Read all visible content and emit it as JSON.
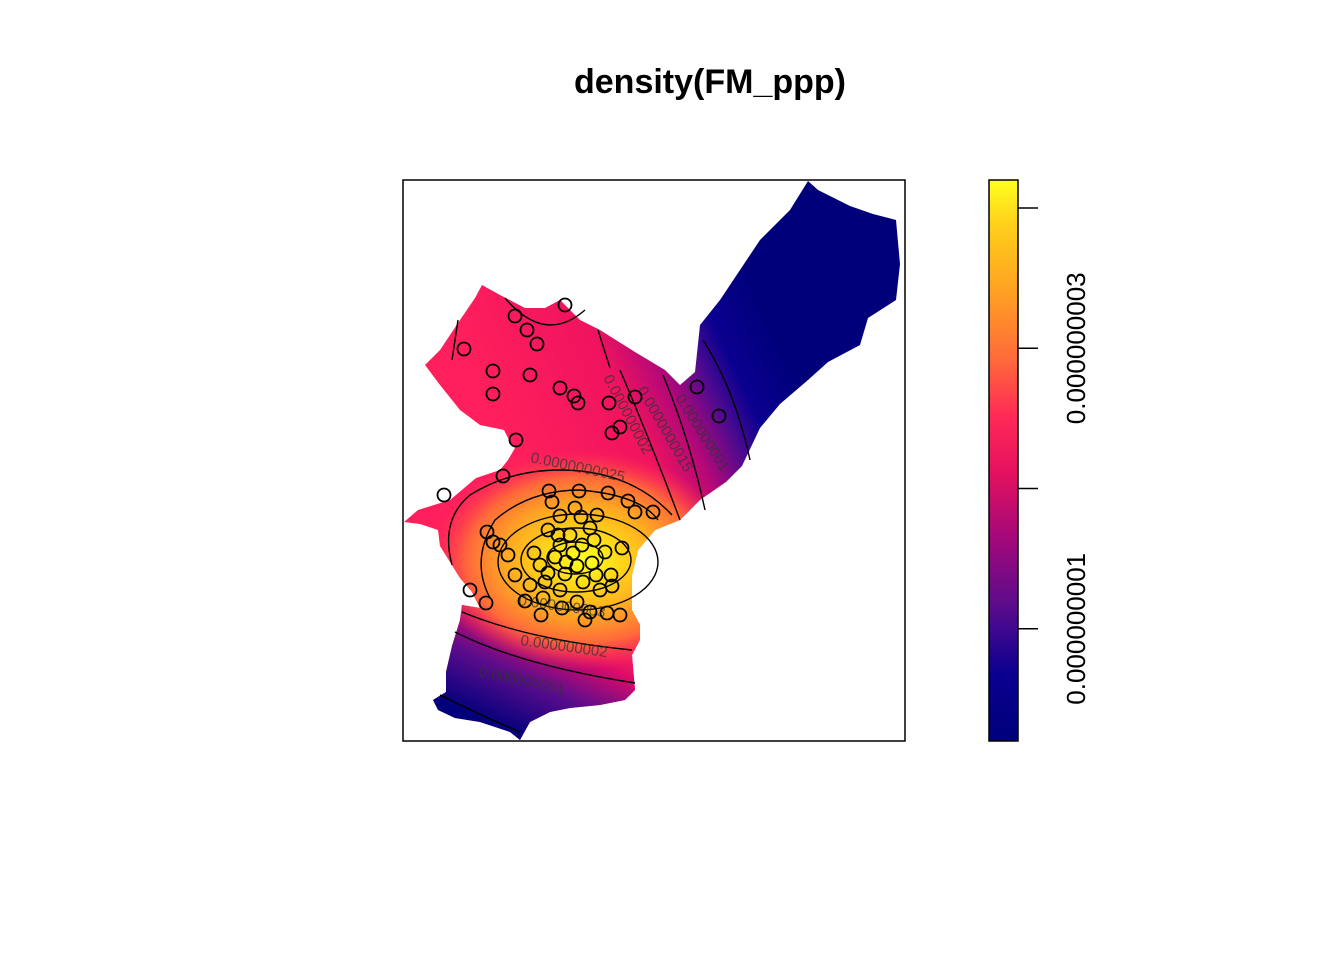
{
  "chart_data": {
    "type": "heatmap",
    "title": "density(FM_ppp)",
    "xlabel": "",
    "ylabel": "",
    "colormap": [
      "#00007a",
      "#08008f",
      "#5a0c8c",
      "#a3087a",
      "#e6115f",
      "#ff2a55",
      "#ff6a3a",
      "#ffa022",
      "#ffd01a",
      "#ffff20"
    ],
    "colorbar": {
      "range": [
        2e-10,
        4.2e-09
      ],
      "ticks": [
        {
          "value": 1e-09,
          "label": "0.000000001"
        },
        {
          "value": 2e-09,
          "label": ""
        },
        {
          "value": 3e-09,
          "label": "0.000000003"
        },
        {
          "value": 4e-09,
          "label": ""
        }
      ]
    },
    "contour_labels": [
      {
        "text": "0.000000001"
      },
      {
        "text": "0.000000002"
      },
      {
        "text": "0.000000003"
      },
      {
        "text": "0.0000000025"
      },
      {
        "text": "0.000000002"
      },
      {
        "text": "0.0000000015"
      },
      {
        "text": "0.000000001"
      }
    ],
    "points_count": 73
  }
}
